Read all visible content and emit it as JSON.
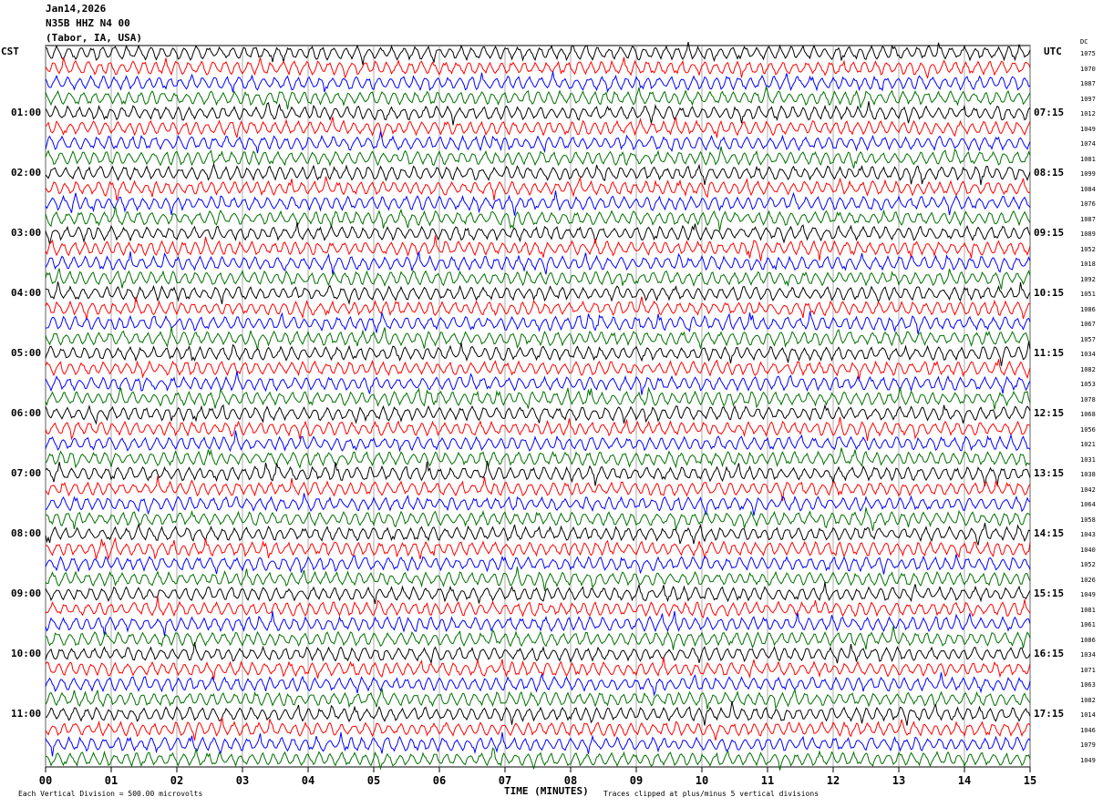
{
  "header": {
    "date": "Jan14,2026",
    "station": "N35B HHZ N4 00",
    "location": "(Tabor, IA, USA)"
  },
  "left_axis_label": "CST",
  "right_axis_label": "UTC",
  "dc_label": "DC",
  "footer": {
    "scale": "Each Vertical Division =  500.00 microvolts",
    "xlabel": "TIME (MINUTES)",
    "clip_note": "Traces clipped at plus/minus 5 vertical divisions"
  },
  "chart_data": {
    "type": "line",
    "xlabel": "TIME (MINUTES)",
    "xlim": [
      0,
      15
    ],
    "x_ticks": [
      "00",
      "01",
      "02",
      "03",
      "04",
      "05",
      "06",
      "07",
      "08",
      "09",
      "10",
      "11",
      "12",
      "13",
      "14",
      "15"
    ],
    "grid": "vertical lines each minute",
    "trace_count": 48,
    "trace_colors": [
      "#000000",
      "#ff0000",
      "#0000ff",
      "#007000"
    ],
    "cst_labels": [
      "01:00",
      "02:00",
      "03:00",
      "04:00",
      "05:00",
      "06:00",
      "07:00",
      "08:00",
      "09:00",
      "10:00",
      "11:00"
    ],
    "utc_labels": [
      "07:15",
      "08:15",
      "09:15",
      "10:15",
      "11:15",
      "12:15",
      "13:15",
      "14:15",
      "15:15",
      "16:15",
      "17:15"
    ],
    "dc_values": [
      "1075",
      "1070",
      "1087",
      "1097",
      "1012",
      "1049",
      "1074",
      "1081",
      "1099",
      "1084",
      "1076",
      "1087",
      "1089",
      "1052",
      "1018",
      "1092",
      "1051",
      "1086",
      "1067",
      "1057",
      "1034",
      "1082",
      "1053",
      "1078",
      "1068",
      "1056",
      "1021",
      "1031",
      "1038",
      "1042",
      "1064",
      "1058",
      "1043",
      "1040",
      "1052",
      "1026",
      "1049",
      "1081",
      "1061",
      "1086",
      "1034",
      "1071",
      "1063",
      "1082",
      "1014",
      "1046",
      "1079",
      "1049"
    ]
  }
}
